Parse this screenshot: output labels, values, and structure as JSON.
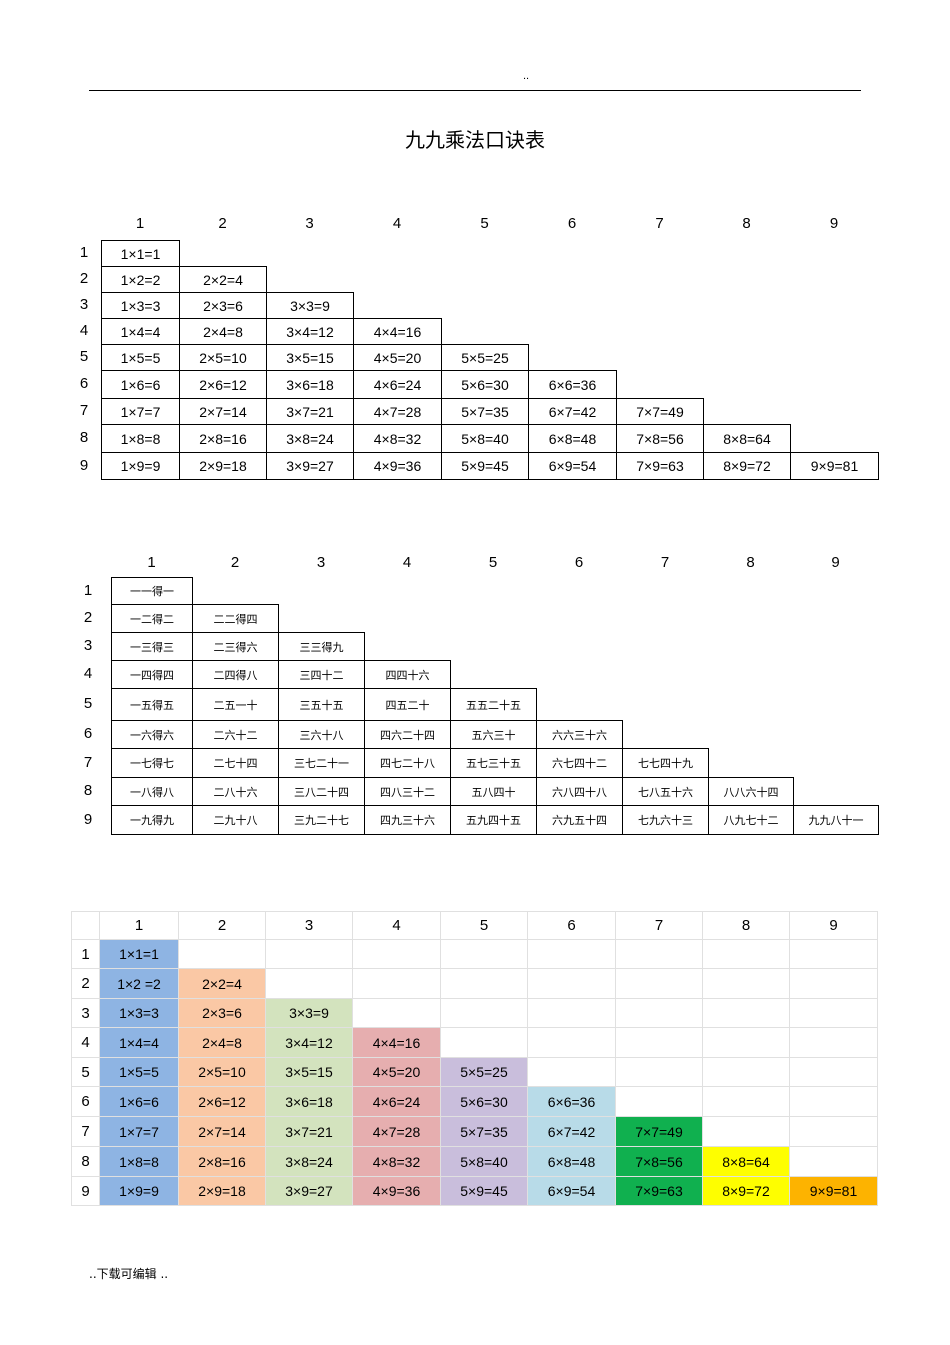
{
  "header": {
    "dots": "..",
    "title": "九九乘法口诀表"
  },
  "footer": {
    "text": "..下载可编辑      .."
  },
  "headers": [
    "1",
    "2",
    "3",
    "4",
    "5",
    "6",
    "7",
    "8",
    "9"
  ],
  "table1": [
    [
      "1×1=1"
    ],
    [
      "1×2=2",
      "2×2=4"
    ],
    [
      "1×3=3",
      "2×3=6",
      "3×3=9"
    ],
    [
      "1×4=4",
      "2×4=8",
      "3×4=12",
      "4×4=16"
    ],
    [
      "1×5=5",
      "2×5=10",
      "3×5=15",
      "4×5=20",
      "5×5=25"
    ],
    [
      "1×6=6",
      "2×6=12",
      "3×6=18",
      "4×6=24",
      "5×6=30",
      "6×6=36"
    ],
    [
      "1×7=7",
      "2×7=14",
      "3×7=21",
      "4×7=28",
      "5×7=35",
      "6×7=42",
      "7×7=49"
    ],
    [
      "1×8=8",
      "2×8=16",
      "3×8=24",
      "4×8=32",
      "5×8=40",
      "6×8=48",
      "7×8=56",
      "8×8=64"
    ],
    [
      "1×9=9",
      "2×9=18",
      "3×9=27",
      "4×9=36",
      "5×9=45",
      "6×9=54",
      "7×9=63",
      "8×9=72",
      "9×9=81"
    ]
  ],
  "table2": [
    [
      "一一得一"
    ],
    [
      "一二得二",
      "二二得四"
    ],
    [
      "一三得三",
      "二三得六",
      "三三得九"
    ],
    [
      "一四得四",
      "二四得八",
      "三四十二",
      "四四十六"
    ],
    [
      "一五得五",
      "二五一十",
      "三五十五",
      "四五二十",
      "五五二十五"
    ],
    [
      "一六得六",
      "二六十二",
      "三六十八",
      "四六二十四",
      "五六三十",
      "六六三十六"
    ],
    [
      "一七得七",
      "二七十四",
      "三七二十一",
      "四七二十八",
      "五七三十五",
      "六七四十二",
      "七七四十九"
    ],
    [
      "一八得八",
      "二八十六",
      "三八二十四",
      "四八三十二",
      "五八四十",
      "六八四十八",
      "七八五十六",
      "八八六十四"
    ],
    [
      "一九得九",
      "二九十八",
      "三九二十七",
      "四九三十六",
      "五九四十五",
      "六九五十四",
      "七九六十三",
      "八九七十二",
      "九九八十一"
    ]
  ],
  "table3": [
    [
      "1×1=1"
    ],
    [
      "1×2 =2",
      "2×2=4"
    ],
    [
      "1×3=3",
      "2×3=6",
      "3×3=9"
    ],
    [
      "1×4=4",
      "2×4=8",
      "3×4=12",
      "4×4=16"
    ],
    [
      "1×5=5",
      "2×5=10",
      "3×5=15",
      "4×5=20",
      "5×5=25"
    ],
    [
      "1×6=6",
      "2×6=12",
      "3×6=18",
      "4×6=24",
      "5×6=30",
      "6×6=36"
    ],
    [
      "1×7=7",
      "2×7=14",
      "3×7=21",
      "4×7=28",
      "5×7=35",
      "6×7=42",
      "7×7=49"
    ],
    [
      "1×8=8",
      "2×8=16",
      "3×8=24",
      "4×8=32",
      "5×8=40",
      "6×8=48",
      "7×8=56",
      "8×8=64"
    ],
    [
      "1×9=9",
      "2×9=18",
      "3×9=27",
      "4×9=36",
      "5×9=45",
      "6×9=54",
      "7×9=63",
      "8×9=72",
      "9×9=81"
    ]
  ],
  "column_colors": [
    "#8eb4e3",
    "#fac8a5",
    "#d3e3be",
    "#e6aeaf",
    "#c9bedc",
    "#b8dbe8",
    "#10b04f",
    "#fefe00",
    "#fdb300"
  ]
}
